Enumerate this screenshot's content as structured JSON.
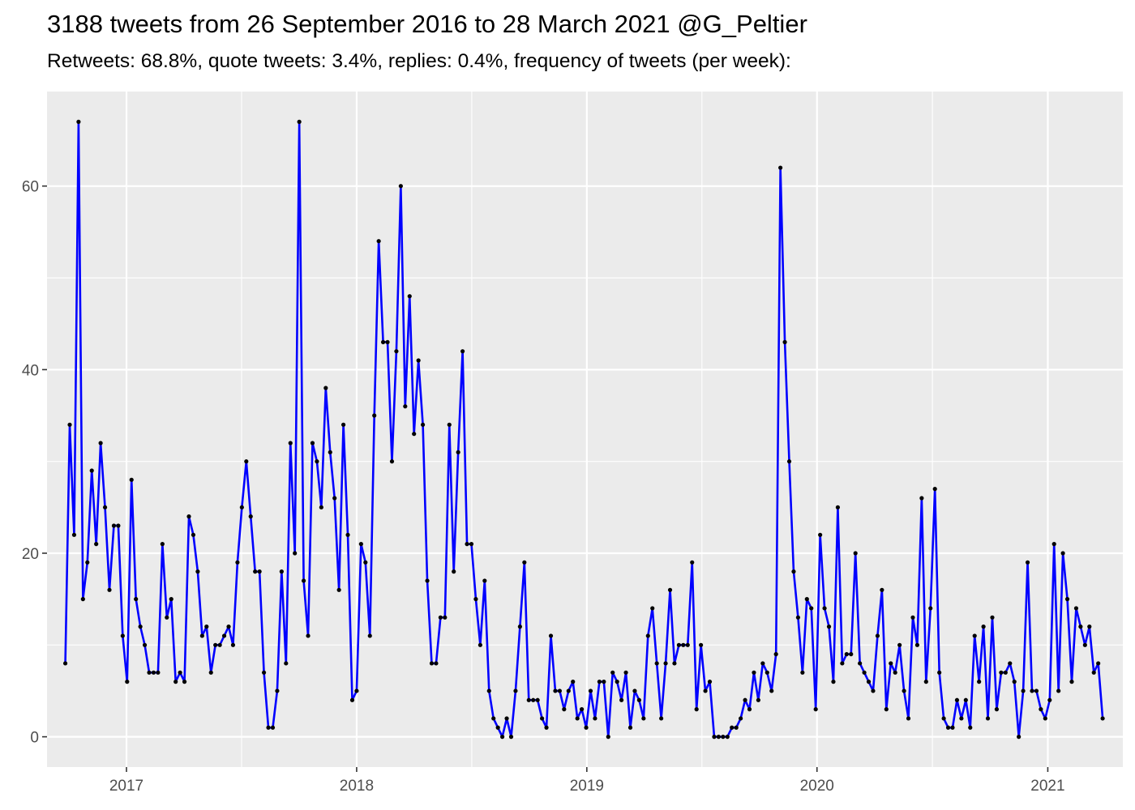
{
  "chart_data": {
    "type": "line",
    "title": "3188 tweets from 26 September 2016 to 28 March 2021 @G_Peltier",
    "subtitle": "Retweets: 68.8%, quote tweets: 3.4%, replies: 0.4%, frequency of tweets (per week):",
    "xlabel": "",
    "ylabel": "",
    "x_ticks": [
      "2017",
      "2018",
      "2019",
      "2020",
      "2021"
    ],
    "y_ticks": [
      0,
      20,
      40,
      60
    ],
    "xlim": [
      "2016-08-28",
      "2021-04-30"
    ],
    "ylim": [
      -3.3,
      70.3
    ],
    "grid": true,
    "colors": {
      "line": "#0000ff",
      "point": "#000000",
      "panel": "#ebebeb",
      "grid": "#ffffff"
    },
    "series": [
      {
        "x_start": "2016-09-26",
        "x_step_days": 7,
        "values": [
          8,
          34,
          22,
          67,
          15,
          19,
          29,
          21,
          32,
          25,
          16,
          23,
          23,
          11,
          6,
          28,
          15,
          12,
          10,
          7,
          7,
          7,
          21,
          13,
          15,
          6,
          7,
          6,
          24,
          22,
          18,
          11,
          12,
          7,
          10,
          10,
          11,
          12,
          10,
          19,
          25,
          30,
          24,
          18,
          18,
          7,
          1,
          1,
          5,
          18,
          8,
          32,
          20,
          67,
          17,
          11,
          32,
          30,
          25,
          38,
          31,
          26,
          16,
          34,
          22,
          4,
          5,
          21,
          19,
          11,
          35,
          54,
          43,
          43,
          30,
          42,
          60,
          36,
          48,
          33,
          41,
          34,
          17,
          8,
          8,
          13,
          13,
          34,
          18,
          31,
          42,
          21,
          21,
          15,
          10,
          17,
          5,
          2,
          1,
          0,
          2,
          0,
          5,
          12,
          19,
          4,
          4,
          4,
          2,
          1,
          11,
          5,
          5,
          3,
          5,
          6,
          2,
          3,
          1,
          5,
          2,
          6,
          6,
          0,
          7,
          6,
          4,
          7,
          1,
          5,
          4,
          2,
          11,
          14,
          8,
          2,
          8,
          16,
          8,
          10,
          10,
          10,
          19,
          3,
          10,
          5,
          6,
          0,
          0,
          0,
          0,
          1,
          1,
          2,
          4,
          3,
          7,
          4,
          8,
          7,
          5,
          9,
          62,
          43,
          30,
          18,
          13,
          7,
          15,
          14,
          3,
          22,
          14,
          12,
          6,
          25,
          8,
          9,
          9,
          20,
          8,
          7,
          6,
          5,
          11,
          16,
          3,
          8,
          7,
          10,
          5,
          2,
          13,
          10,
          26,
          6,
          14,
          27,
          7,
          2,
          1,
          1,
          4,
          2,
          4,
          1,
          11,
          6,
          12,
          2,
          13,
          3,
          7,
          7,
          8,
          6,
          0,
          5,
          19,
          5,
          5,
          3,
          2,
          4,
          21,
          5,
          20,
          15,
          6,
          14,
          12,
          10,
          12,
          7,
          8,
          2
        ]
      }
    ]
  }
}
